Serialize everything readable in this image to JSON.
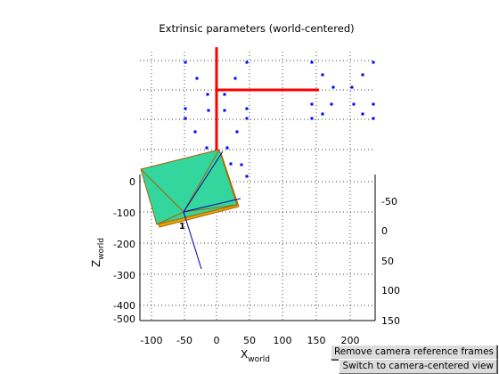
{
  "window": {
    "title": "Extrinsic parameters (world-centered)"
  },
  "axes": {
    "xlabel_main": "X",
    "xlabel_sub": "world",
    "zlabel_main": "Z",
    "zlabel_sub": "world",
    "x_ticks": [
      "-100",
      "-50",
      "0",
      "50",
      "100",
      "150",
      "200"
    ],
    "z_ticks": [
      "0",
      "-100",
      "-200",
      "-300",
      "-400",
      "-500"
    ],
    "y_ticks": [
      "-50",
      "0",
      "50",
      "100",
      "150"
    ],
    "grid": true
  },
  "annotation": {
    "camera_label": "1"
  },
  "colors": {
    "axes_red": "#ff0000",
    "points_blue": "#0000ff",
    "camera_face": "#33d69c",
    "camera_edge": "#b06000",
    "camera_bottom": "#e6a800",
    "camera_axis": "#0000aa"
  },
  "buttons": {
    "remove_frames": "Remove camera reference frames",
    "switch_view": "Switch to camera-centered view"
  }
}
